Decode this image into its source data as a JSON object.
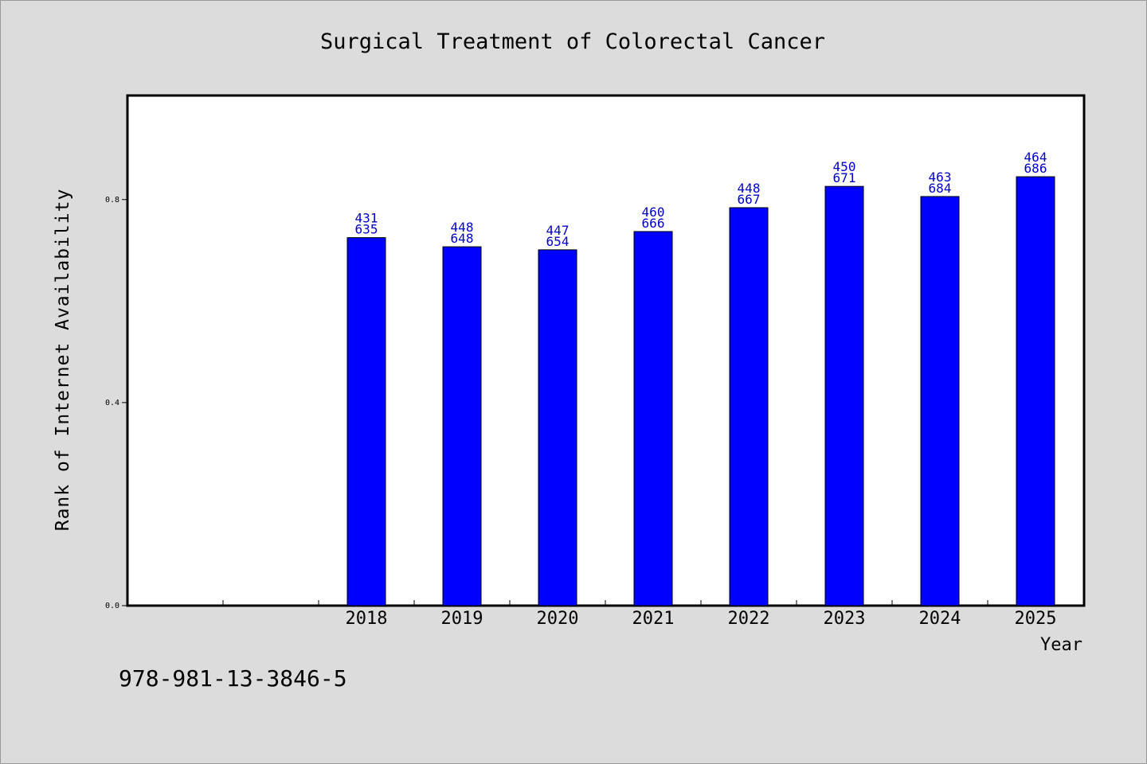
{
  "chart_data": {
    "type": "bar",
    "title": "Surgical Treatment of Colorectal Cancer",
    "xlabel": "Year",
    "ylabel": "Rank of Internet Availability",
    "categories": [
      "2018",
      "2019",
      "2020",
      "2021",
      "2022",
      "2023",
      "2024",
      "2025"
    ],
    "values": [
      0.725,
      0.707,
      0.701,
      0.737,
      0.784,
      0.826,
      0.806,
      0.845
    ],
    "data_labels": [
      [
        "431",
        "635"
      ],
      [
        "448",
        "648"
      ],
      [
        "447",
        "654"
      ],
      [
        "460",
        "666"
      ],
      [
        "448",
        "667"
      ],
      [
        "450",
        "671"
      ],
      [
        "463",
        "684"
      ],
      [
        "464",
        "686"
      ]
    ],
    "yticks": [
      "0.0",
      "0.4",
      "0.8"
    ],
    "ytick_values": [
      0.0,
      0.4,
      0.8
    ],
    "ylim": [
      0,
      1.005
    ],
    "grid": false,
    "bar_color": "#0000ff",
    "label_color": "#0000cc",
    "background_color": "#dcdcdc",
    "plot_background": "#ffffff"
  },
  "footer": {
    "isbn": "978-981-13-3846-5"
  }
}
